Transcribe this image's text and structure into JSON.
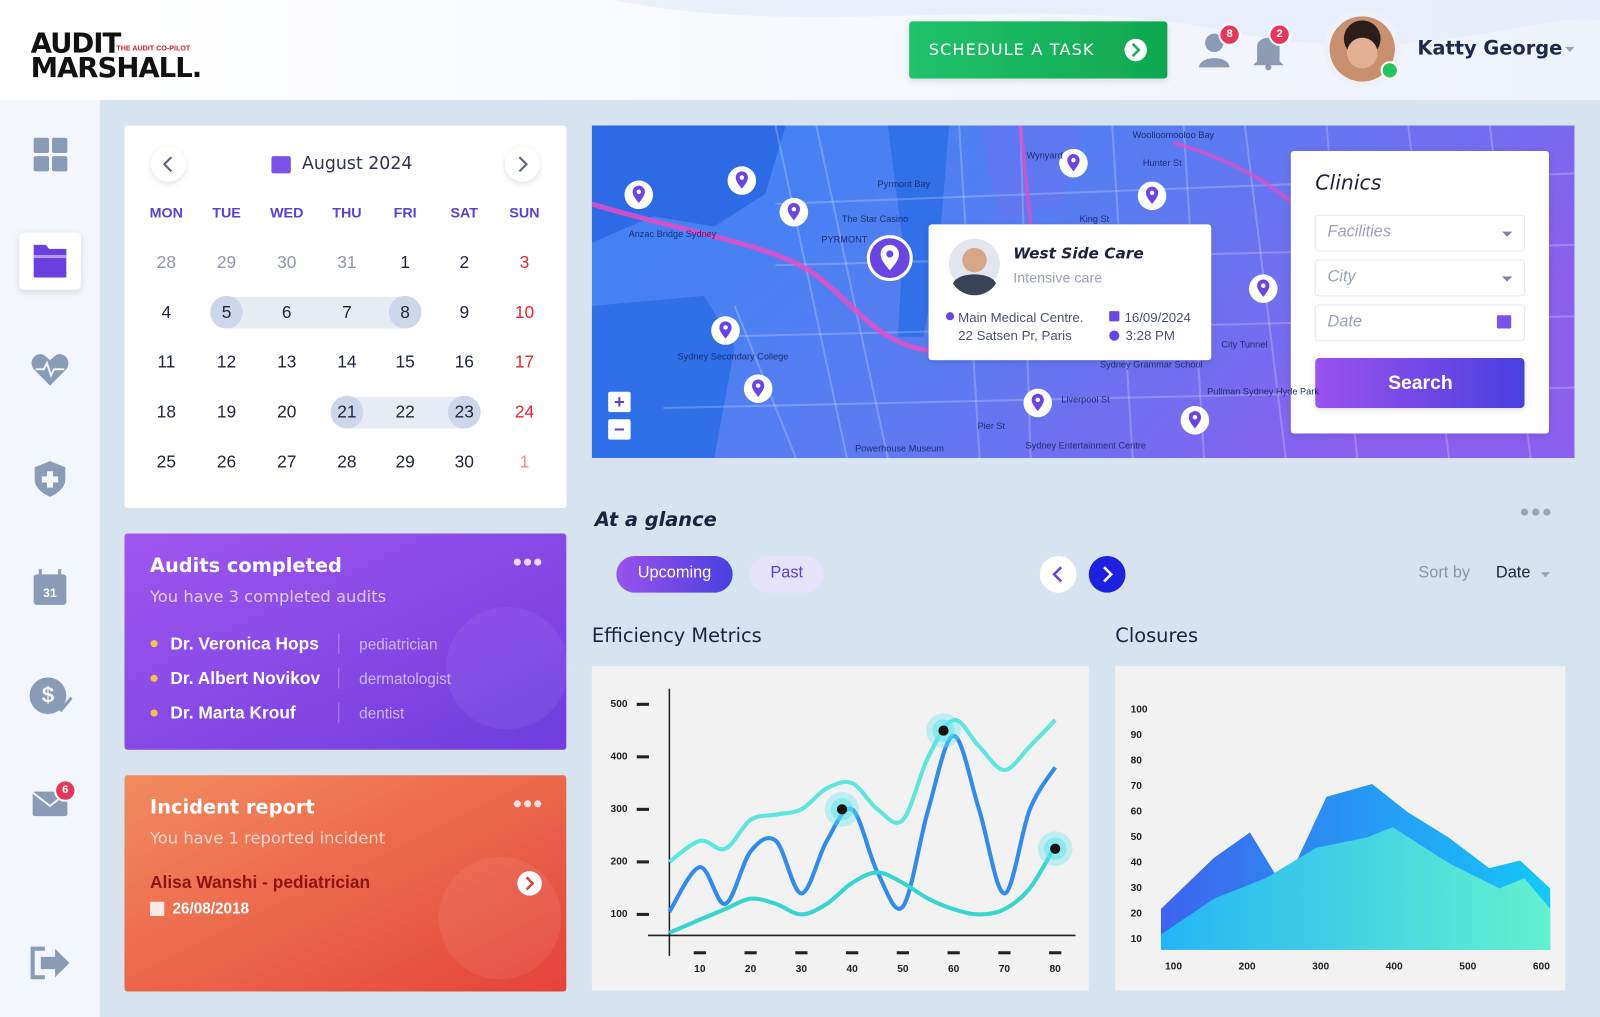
{
  "header": {
    "logo": {
      "line1": "AUDIT",
      "line2": "MARSHALL.",
      "tagline": "THE AUDIT CO-PILOT"
    },
    "schedule_button": "SCHEDULE A TASK",
    "contacts_badge": 8,
    "notifications_badge": 2,
    "user_name": "Katty George"
  },
  "sidebar": {
    "calendar_icon_day": 31,
    "mail_badge": 6
  },
  "calendar": {
    "month": "August 2024",
    "weekdays": [
      "MON",
      "TUE",
      "WED",
      "THU",
      "FRI",
      "SAT",
      "SUN"
    ],
    "weeks": [
      [
        28,
        29,
        30,
        31,
        1,
        2,
        3
      ],
      [
        4,
        5,
        6,
        7,
        8,
        9,
        10
      ],
      [
        11,
        12,
        13,
        14,
        15,
        16,
        17
      ],
      [
        18,
        19,
        20,
        21,
        22,
        23,
        24
      ],
      [
        25,
        26,
        27,
        28,
        29,
        30,
        1
      ]
    ]
  },
  "map": {
    "labels": [
      "PYRMONT",
      "The Star Casino",
      "Pyrmont Bay",
      "Sydney Secondary College",
      "Anzac Bridge Sydney",
      "Hunter St",
      "Sydney Grammar School",
      "Liverpool St",
      "Pier St",
      "Powerhouse Museum",
      "Sydney Entertainment Centre",
      "Pullman Sydney Hyde Park",
      "City Tunnel",
      "Wynyard",
      "King St",
      "Woolloomooloo Bay"
    ],
    "zoom_in": "+",
    "zoom_out": "−",
    "popup": {
      "name": "West Side Care",
      "specialty": "Intensive care",
      "address_line1": "Main Medical Centre.",
      "address_line2": "22 Satsen Pr, Paris",
      "date": "16/09/2024",
      "time": "3:28 PM"
    }
  },
  "clinics": {
    "title": "Clinics",
    "facilities": "Facilities",
    "city": "City",
    "date": "Date",
    "search": "Search"
  },
  "audits": {
    "title": "Audits completed",
    "subtitle": "You have 3 completed audits",
    "doctors": [
      {
        "name": "Dr. Veronica Hops",
        "specialty": "pediatrician"
      },
      {
        "name": "Dr. Albert Novikov",
        "specialty": "dermatologist"
      },
      {
        "name": "Dr. Marta Krouf",
        "specialty": "dentist"
      }
    ]
  },
  "incident": {
    "title": "Incident report",
    "subtitle": "You have 1 reported incident",
    "person": "Alisa Wanshi - pediatrician",
    "date": "26/08/2018"
  },
  "glance": {
    "title": "At a glance",
    "tabs": [
      "Upcoming",
      "Past"
    ],
    "sort_by": "Sort by",
    "sort_value": "Date"
  },
  "chart_data": [
    {
      "type": "line",
      "title": "Efficiency Metrics",
      "x": [
        4,
        10,
        15,
        20,
        25,
        30,
        35,
        40,
        45,
        50,
        55,
        60,
        65,
        70,
        75,
        80
      ],
      "xlim": [
        4,
        84
      ],
      "ylim": [
        60,
        530
      ],
      "xticks": [
        10,
        20,
        30,
        40,
        50,
        60,
        70,
        80
      ],
      "yticks": [
        100,
        200,
        300,
        400,
        500
      ],
      "series": [
        {
          "color": "#5ce6dc",
          "values": [
            200,
            240,
            225,
            280,
            290,
            300,
            340,
            350,
            300,
            280,
            400,
            470,
            420,
            375,
            420,
            470
          ]
        },
        {
          "color": "#2f8cef",
          "values": [
            105,
            190,
            120,
            220,
            240,
            140,
            240,
            300,
            180,
            115,
            300,
            440,
            300,
            140,
            300,
            380
          ]
        },
        {
          "color": "#36d6cf",
          "values": [
            65,
            90,
            110,
            130,
            120,
            100,
            120,
            160,
            180,
            160,
            130,
            110,
            100,
            110,
            150,
            230
          ]
        }
      ],
      "highlights": {
        "x": [
          38,
          58,
          80
        ],
        "y": [
          300,
          450,
          225
        ]
      }
    },
    {
      "type": "area",
      "title": "Closures",
      "xlim": [
        75,
        620
      ],
      "ylim": [
        6,
        104
      ],
      "xticks": [
        100,
        200,
        300,
        400,
        500,
        600
      ],
      "yticks": [
        10,
        20,
        30,
        40,
        50,
        60,
        70,
        80,
        90,
        100
      ],
      "series": [
        {
          "colors": [
            "#3d63ee",
            "#14c8f8"
          ],
          "x": [
            83,
            155,
            204,
            250,
            308,
            370,
            418,
            474,
            529,
            571,
            612
          ],
          "values": [
            22,
            42,
            52,
            30,
            66,
            71,
            60,
            50,
            38,
            41,
            30
          ]
        },
        {
          "colors": [
            "#25b5f6",
            "#62f2cf"
          ],
          "x": [
            83,
            155,
            225,
            294,
            363,
            398,
            474,
            543,
            577,
            612
          ],
          "values": [
            12,
            26,
            34,
            46,
            50,
            54,
            40,
            30,
            34,
            22
          ]
        }
      ]
    }
  ]
}
